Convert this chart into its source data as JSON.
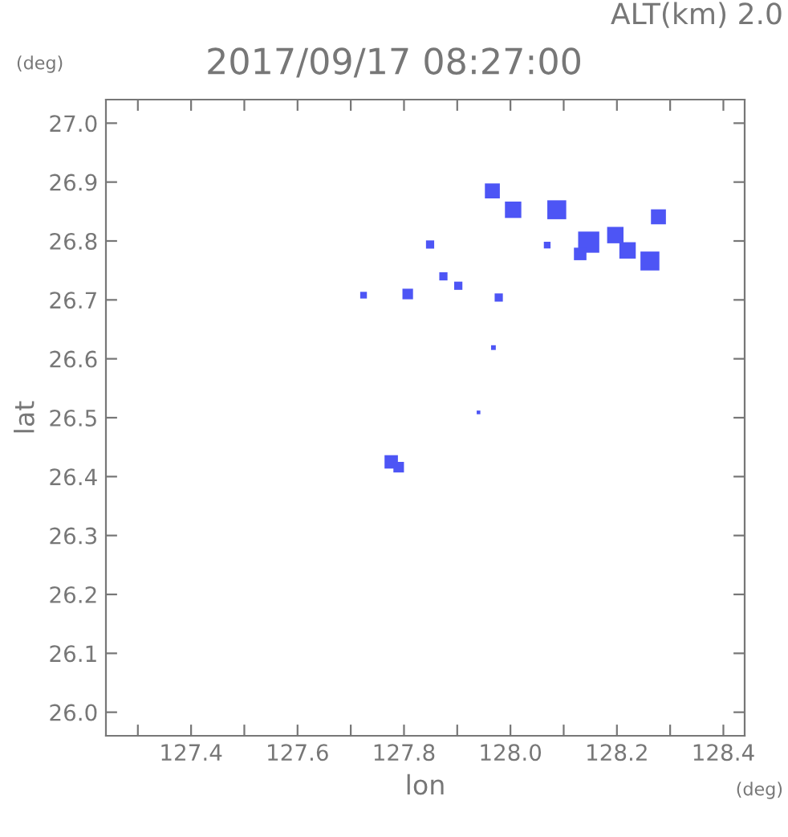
{
  "chart_data": {
    "type": "bubble",
    "title": "2017/09/17 08:27:00",
    "xlabel": "lon",
    "ylabel": "lat",
    "annotations": [
      "ALT(km) 2.0",
      "(deg)",
      "(deg)"
    ],
    "xlim": [
      127.24,
      128.44
    ],
    "ylim": [
      25.96,
      27.04
    ],
    "xticks": [
      {
        "value": 127.3,
        "label": null
      },
      127.4,
      {
        "value": 127.5,
        "label": null
      },
      127.6,
      {
        "value": 127.7,
        "label": null
      },
      127.8,
      {
        "value": 127.9,
        "label": null
      },
      {
        "value": 128.0,
        "label": "128.0"
      },
      {
        "value": 128.1,
        "label": null
      },
      128.2,
      {
        "value": 128.3,
        "label": null
      },
      128.4
    ],
    "yticks": [
      {
        "value": 26.0,
        "label": "26.0"
      },
      26.1,
      26.2,
      26.3,
      26.4,
      26.5,
      26.6,
      26.7,
      26.8,
      26.9,
      {
        "value": 27.0,
        "label": "27.0"
      }
    ],
    "grid": false,
    "legend": false,
    "marker": "square",
    "series": [
      {
        "color": "#4d55f5",
        "x": [
          127.966,
          128.005,
          128.087,
          128.278,
          127.849,
          128.069,
          128.147,
          128.197,
          128.131,
          128.22,
          128.262,
          127.874,
          127.902,
          127.807,
          127.724,
          127.978,
          127.968,
          127.94,
          127.776,
          127.79
        ],
        "values": [
          26.885,
          26.853,
          26.853,
          26.841,
          26.794,
          26.793,
          26.798,
          26.81,
          26.778,
          26.784,
          26.766,
          26.74,
          26.724,
          26.71,
          26.708,
          26.704,
          26.619,
          26.509,
          26.425,
          26.416
        ],
        "sizes": [
          0.5,
          0.6,
          0.8,
          0.5,
          0.15,
          0.1,
          1,
          0.6,
          0.35,
          0.6,
          0.8,
          0.15,
          0.15,
          0.25,
          0.1,
          0.15,
          0.05,
          0.03,
          0.4,
          0.25
        ]
      }
    ]
  }
}
